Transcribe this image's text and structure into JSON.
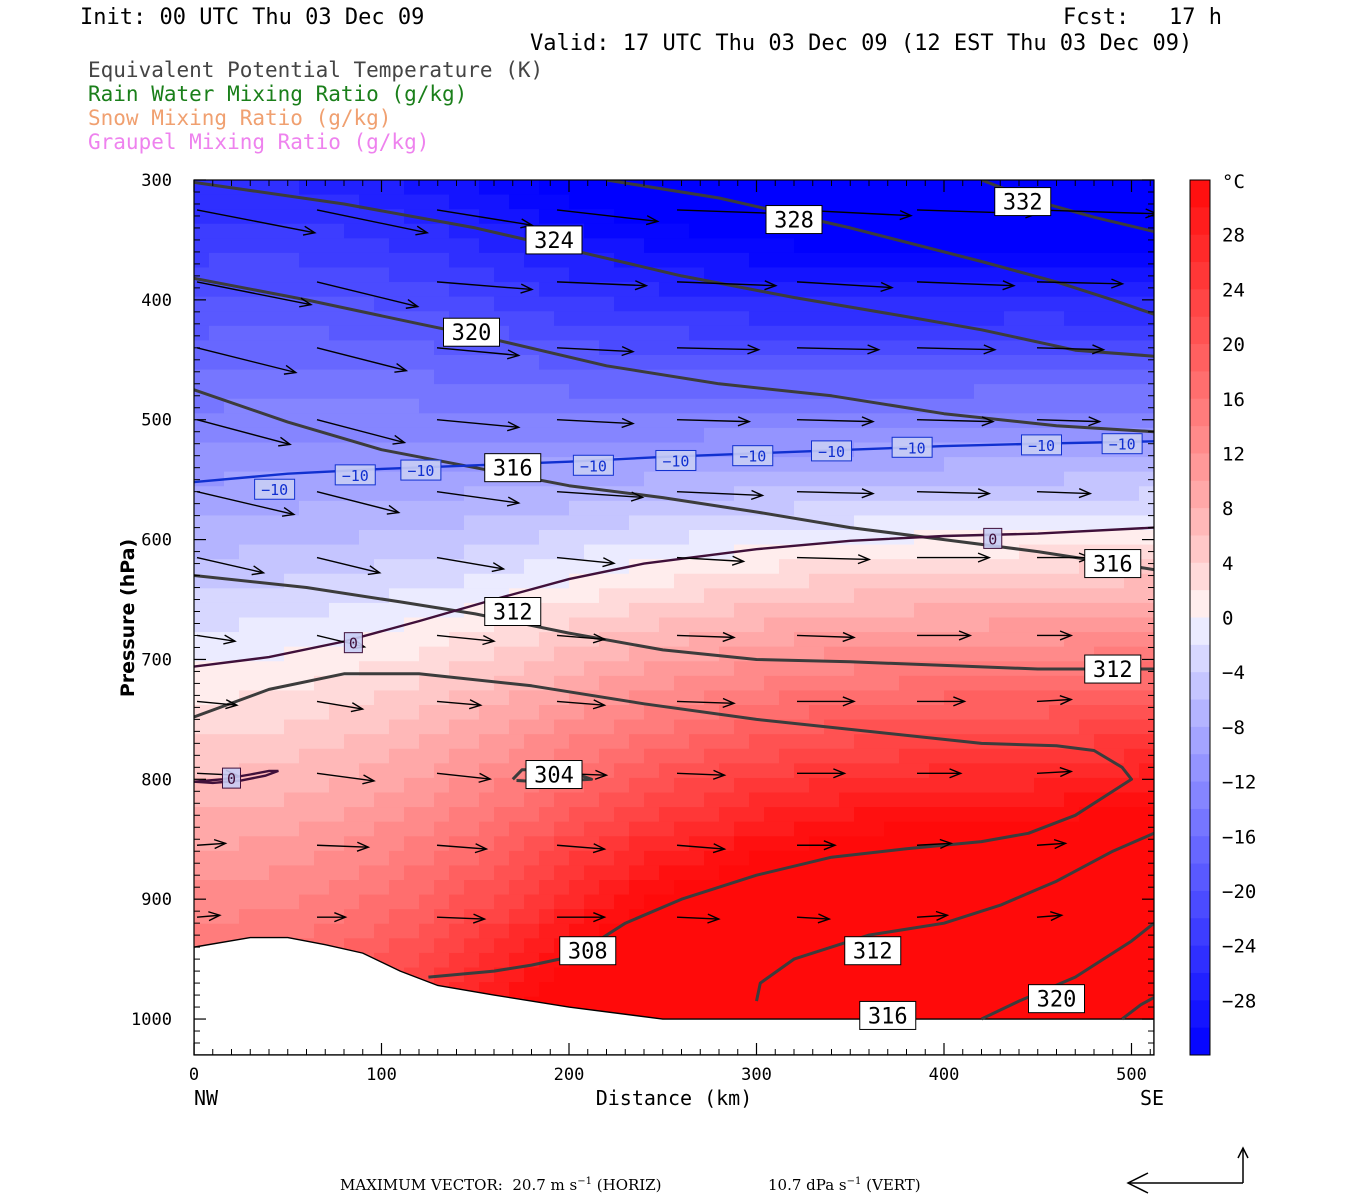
{
  "header": {
    "init": "Init: 00 UTC Thu 03 Dec 09",
    "fcst": "Fcst:   17 h",
    "valid": "Valid: 17 UTC Thu 03 Dec 09 (12 EST Thu 03 Dec 09)"
  },
  "legend": [
    {
      "label": "Equivalent Potential Temperature (K)",
      "color": "#444444"
    },
    {
      "label": "Rain Water Mixing Ratio (g/kg)",
      "color": "#1a7f1a"
    },
    {
      "label": "Snow Mixing Ratio (g/kg)",
      "color": "#f0a070"
    },
    {
      "label": "Graupel Mixing Ratio (g/kg)",
      "color": "#ee82ee"
    }
  ],
  "chart_data": {
    "type": "heatmap",
    "xlabel": "Distance (km)",
    "ylabel": "Pressure (hPa)",
    "xlim": [
      0,
      512
    ],
    "ylim": [
      1030,
      300
    ],
    "x_ticks": [
      0,
      100,
      200,
      300,
      400,
      500
    ],
    "x_tick_labels": [
      "0",
      "100",
      "200",
      "300",
      "400",
      "500"
    ],
    "y_ticks": [
      300,
      400,
      500,
      600,
      700,
      800,
      900,
      1000
    ],
    "y_tick_labels": [
      "300",
      "400",
      "500",
      "600",
      "700",
      "800",
      "900",
      "1000"
    ],
    "endpoints": {
      "left": "NW",
      "right": "SE"
    },
    "colorbar": {
      "unit": "°C",
      "range": [
        -32,
        32
      ],
      "ticks": [
        28,
        24,
        20,
        16,
        12,
        8,
        4,
        0,
        -4,
        -8,
        -12,
        -16,
        -20,
        -24,
        -28
      ],
      "tick_labels": [
        "28",
        "24",
        "20",
        "16",
        "12",
        "8",
        "4",
        "0",
        "−4",
        "−8",
        "−12",
        "−16",
        "−20",
        "−24",
        "−28"
      ]
    },
    "temperature_isolines": [
      {
        "label": "−10",
        "color": "#1030d0",
        "points": [
          [
            0,
            552
          ],
          [
            50,
            545
          ],
          [
            100,
            541
          ],
          [
            150,
            538
          ],
          [
            200,
            535
          ],
          [
            250,
            531
          ],
          [
            300,
            528
          ],
          [
            350,
            525
          ],
          [
            400,
            522
          ],
          [
            450,
            520
          ],
          [
            512,
            518
          ]
        ],
        "label_positions": [
          [
            43,
            558
          ],
          [
            86,
            546
          ],
          [
            121,
            542
          ],
          [
            213,
            538
          ],
          [
            257,
            534
          ],
          [
            298,
            530
          ],
          [
            340,
            526
          ],
          [
            383,
            523
          ],
          [
            452,
            521
          ],
          [
            495,
            520
          ]
        ]
      },
      {
        "label": "0",
        "color": "#40103a",
        "points": [
          [
            0,
            706
          ],
          [
            40,
            698
          ],
          [
            80,
            685
          ],
          [
            120,
            668
          ],
          [
            160,
            650
          ],
          [
            200,
            633
          ],
          [
            240,
            620
          ],
          [
            300,
            608
          ],
          [
            350,
            601
          ],
          [
            400,
            597
          ],
          [
            450,
            595
          ],
          [
            512,
            590
          ]
        ],
        "label_positions": [
          [
            85,
            686
          ],
          [
            426,
            599
          ]
        ]
      },
      {
        "label": "0",
        "color": "#40103a",
        "points": [
          [
            0,
            802
          ],
          [
            15,
            800
          ],
          [
            30,
            796
          ],
          [
            40,
            793
          ],
          [
            45,
            793
          ],
          [
            38,
            797
          ],
          [
            25,
            801
          ],
          [
            10,
            803
          ],
          [
            0,
            802
          ]
        ],
        "label_positions": [
          [
            20,
            799
          ]
        ]
      }
    ],
    "theta_e_contours": [
      {
        "label": "332",
        "points": [
          [
            420,
            300
          ],
          [
            450,
            318
          ],
          [
            480,
            331
          ],
          [
            512,
            343
          ]
        ],
        "label_positions": [
          [
            442,
            318
          ]
        ]
      },
      {
        "label": "328",
        "points": [
          [
            220,
            300
          ],
          [
            280,
            315
          ],
          [
            350,
            340
          ],
          [
            420,
            368
          ],
          [
            460,
            385
          ],
          [
            490,
            400
          ],
          [
            512,
            412
          ]
        ],
        "label_positions": [
          [
            320,
            333
          ]
        ]
      },
      {
        "label": "324",
        "points": [
          [
            0,
            302
          ],
          [
            80,
            320
          ],
          [
            150,
            340
          ],
          [
            200,
            358
          ],
          [
            260,
            380
          ],
          [
            320,
            398
          ],
          [
            380,
            414
          ],
          [
            420,
            425
          ],
          [
            470,
            442
          ],
          [
            512,
            447
          ]
        ],
        "label_positions": [
          [
            192,
            350
          ]
        ]
      },
      {
        "label": "320",
        "points": [
          [
            0,
            382
          ],
          [
            60,
            400
          ],
          [
            120,
            420
          ],
          [
            160,
            433
          ],
          [
            220,
            455
          ],
          [
            280,
            470
          ],
          [
            340,
            480
          ],
          [
            400,
            495
          ],
          [
            460,
            505
          ],
          [
            490,
            508
          ],
          [
            512,
            510
          ]
        ],
        "label_positions": [
          [
            148,
            427
          ]
        ]
      },
      {
        "label": "316",
        "points": [
          [
            0,
            475
          ],
          [
            50,
            502
          ],
          [
            100,
            525
          ],
          [
            150,
            540
          ],
          [
            200,
            555
          ],
          [
            250,
            565
          ],
          [
            300,
            577
          ],
          [
            350,
            590
          ],
          [
            400,
            600
          ],
          [
            450,
            610
          ],
          [
            512,
            625
          ]
        ],
        "label_positions": [
          [
            170,
            540
          ],
          [
            490,
            620
          ]
        ]
      },
      {
        "label": "312",
        "points": [
          [
            0,
            630
          ],
          [
            60,
            640
          ],
          [
            110,
            652
          ],
          [
            150,
            662
          ],
          [
            200,
            678
          ],
          [
            250,
            692
          ],
          [
            300,
            700
          ],
          [
            350,
            702
          ],
          [
            400,
            705
          ],
          [
            450,
            708
          ],
          [
            512,
            708
          ]
        ],
        "label_positions": [
          [
            170,
            660
          ],
          [
            490,
            708
          ]
        ]
      },
      {
        "label": "308",
        "points": [
          [
            0,
            748
          ],
          [
            40,
            725
          ],
          [
            80,
            712
          ],
          [
            120,
            712
          ],
          [
            180,
            722
          ],
          [
            240,
            737
          ],
          [
            300,
            750
          ],
          [
            360,
            760
          ],
          [
            420,
            770
          ],
          [
            460,
            772
          ],
          [
            480,
            776
          ],
          [
            495,
            790
          ],
          [
            500,
            800
          ],
          [
            490,
            810
          ],
          [
            470,
            830
          ],
          [
            445,
            845
          ],
          [
            420,
            852
          ],
          [
            380,
            858
          ],
          [
            340,
            865
          ],
          [
            300,
            880
          ],
          [
            260,
            900
          ],
          [
            230,
            920
          ],
          [
            210,
            940
          ],
          [
            195,
            950
          ],
          [
            180,
            955
          ],
          [
            160,
            960
          ],
          [
            125,
            965
          ]
        ],
        "label_positions": [
          [
            210,
            943
          ]
        ]
      },
      {
        "label": "304",
        "points": [
          [
            170,
            800
          ],
          [
            175,
            792
          ],
          [
            190,
            792
          ],
          [
            205,
            796
          ],
          [
            212,
            800
          ],
          [
            200,
            801
          ],
          [
            185,
            802
          ],
          [
            172,
            801
          ]
        ],
        "label_positions": [
          [
            192,
            796
          ]
        ]
      },
      {
        "label": "312",
        "points": [
          [
            300,
            985
          ],
          [
            302,
            970
          ],
          [
            320,
            950
          ],
          [
            360,
            930
          ],
          [
            400,
            920
          ],
          [
            430,
            905
          ],
          [
            460,
            885
          ],
          [
            490,
            860
          ],
          [
            512,
            845
          ]
        ],
        "label_positions": [
          [
            362,
            943
          ]
        ]
      },
      {
        "label": "316",
        "points": [
          [
            420,
            1000
          ],
          [
            440,
            985
          ],
          [
            470,
            965
          ],
          [
            500,
            935
          ],
          [
            512,
            920
          ]
        ],
        "label_positions": [
          [
            370,
            997
          ]
        ]
      },
      {
        "label": "320",
        "points": [
          [
            495,
            1000
          ],
          [
            505,
            988
          ],
          [
            512,
            982
          ]
        ],
        "label_positions": [
          [
            460,
            983
          ]
        ]
      }
    ],
    "terrain": [
      [
        0,
        940
      ],
      [
        30,
        932
      ],
      [
        50,
        932
      ],
      [
        70,
        938
      ],
      [
        90,
        945
      ],
      [
        110,
        960
      ],
      [
        130,
        972
      ],
      [
        160,
        980
      ],
      [
        200,
        990
      ],
      [
        250,
        1000
      ],
      [
        300,
        1000
      ],
      [
        350,
        1000
      ],
      [
        400,
        1000
      ],
      [
        450,
        1000
      ],
      [
        512,
        1000
      ]
    ],
    "wind_vectors": {
      "columns_km": [
        0,
        64,
        128,
        192,
        256,
        320,
        384,
        448
      ],
      "rows_hpa": [
        325,
        385,
        440,
        500,
        560,
        615,
        680,
        735,
        795,
        855,
        915
      ],
      "u": [
        [
          6.2,
          5.8,
          5.0,
          5.3,
          5.7,
          6.0,
          6.3,
          6.3
        ],
        [
          6.0,
          5.3,
          5.0,
          4.7,
          5.2,
          5.0,
          5.1,
          4.5
        ],
        [
          5.2,
          4.7,
          4.3,
          4.0,
          4.3,
          4.3,
          4.1,
          3.5
        ],
        [
          4.9,
          4.6,
          4.3,
          4.0,
          3.8,
          4.0,
          4.0,
          3.3
        ],
        [
          5.1,
          4.3,
          4.3,
          4.5,
          4.5,
          4.0,
          3.8,
          2.8
        ],
        [
          3.5,
          3.3,
          3.5,
          3.0,
          3.5,
          3.8,
          3.8,
          2.8
        ],
        [
          2.0,
          2.5,
          3.0,
          2.5,
          3.0,
          3.0,
          2.8,
          1.8
        ],
        [
          2.1,
          2.4,
          2.3,
          2.5,
          3.0,
          3.0,
          2.5,
          1.8
        ],
        [
          2.1,
          3.0,
          2.8,
          2.6,
          2.5,
          2.5,
          2.3,
          1.8
        ],
        [
          1.5,
          2.7,
          2.6,
          2.5,
          2.5,
          2.0,
          1.8,
          1.5
        ],
        [
          1.2,
          1.5,
          2.5,
          2.5,
          2.2,
          1.7,
          1.6,
          1.3
        ]
      ],
      "w": [
        [
          -1.2,
          -1.2,
          -0.8,
          -0.6,
          -0.2,
          -0.3,
          -0.2,
          -0.2
        ],
        [
          -1.2,
          -1.3,
          -0.4,
          -0.2,
          -0.2,
          -0.3,
          -0.2,
          -0.1
        ],
        [
          -1.3,
          -1.2,
          -0.4,
          -0.2,
          -0.1,
          -0.1,
          -0.1,
          -0.1
        ],
        [
          -1.3,
          -1.2,
          -0.4,
          -0.2,
          -0.1,
          -0.1,
          -0.1,
          -0.1
        ],
        [
          -1.2,
          -1.1,
          -0.6,
          -0.3,
          -0.2,
          -0.1,
          -0.1,
          -0.1
        ],
        [
          -0.8,
          -0.8,
          -0.6,
          -0.3,
          -0.2,
          -0.1,
          0.0,
          0.0
        ],
        [
          -0.3,
          -0.6,
          -0.3,
          -0.2,
          -0.1,
          -0.1,
          0.0,
          0.0
        ],
        [
          -0.2,
          -0.4,
          -0.2,
          -0.2,
          -0.1,
          0.0,
          0.0,
          0.1
        ],
        [
          -0.1,
          -0.4,
          -0.3,
          -0.1,
          -0.1,
          0.0,
          0.0,
          0.1
        ],
        [
          0.1,
          -0.1,
          -0.2,
          -0.2,
          -0.2,
          0.0,
          0.1,
          0.1
        ],
        [
          0.1,
          0.0,
          -0.1,
          0.0,
          -0.1,
          -0.1,
          0.1,
          0.1
        ]
      ]
    },
    "max_vector": {
      "text": "MAXIMUM VECTOR:  20.7 m s",
      "horiz_unit_suffix": "(HORIZ)",
      "vert_text": "10.7 dPa s",
      "vert_unit_suffix": "(VERT)",
      "exponent": "−1"
    }
  }
}
